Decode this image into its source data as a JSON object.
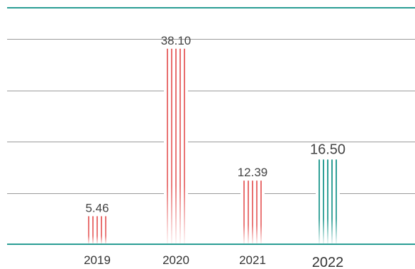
{
  "chart_data": {
    "type": "bar",
    "categories": [
      "2019",
      "2020",
      "2021",
      "2022"
    ],
    "values": [
      5.46,
      38.1,
      12.39,
      16.5
    ],
    "value_labels": [
      "5.46",
      "38.10",
      "12.39",
      "16.50"
    ],
    "highlight_index": 3,
    "ylim": [
      0,
      40
    ],
    "grid": true,
    "colors": {
      "bar": "#e86b6b",
      "highlight": "#2a9d94",
      "frame": "#2a9d94",
      "grid": "#9a9a9a",
      "text": "#444444"
    }
  }
}
